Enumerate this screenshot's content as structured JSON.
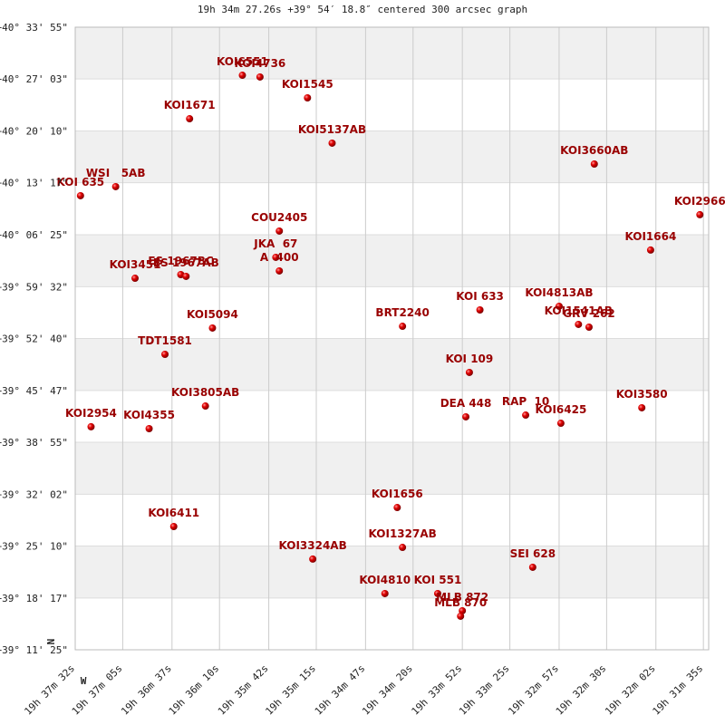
{
  "chart_data": {
    "type": "scatter",
    "title": "19h 34m 27.26s +39° 54′ 18.8″ centered 300 arcsec graph",
    "north_label": "N",
    "west_label": "W",
    "color": "#cc0000",
    "label_color": "#990000",
    "grid": true,
    "band_color": "#f0f0f0",
    "xlim": [
      2252,
      1892
    ],
    "xticks": [
      {
        "value": 2252,
        "label": "19h 37m 32s"
      },
      {
        "value": 2225,
        "label": "19h 37m 05s"
      },
      {
        "value": 2197,
        "label": "19h 36m 37s"
      },
      {
        "value": 2170,
        "label": "19h 36m 10s"
      },
      {
        "value": 2142,
        "label": "19h 35m 42s"
      },
      {
        "value": 2115,
        "label": "19h 35m 15s"
      },
      {
        "value": 2087,
        "label": "19h 34m 47s"
      },
      {
        "value": 2060,
        "label": "19h 34m 20s"
      },
      {
        "value": 2032,
        "label": "19h 33m 52s"
      },
      {
        "value": 2005,
        "label": "19h 33m 25s"
      },
      {
        "value": 1977,
        "label": "19h 32m 57s"
      },
      {
        "value": 1950,
        "label": "19h 32m 30s"
      },
      {
        "value": 1922,
        "label": "19h 32m 02s"
      },
      {
        "value": 1895,
        "label": "19h 31m 35s"
      }
    ],
    "ylim": [
      146035,
      141085
    ],
    "yticks": [
      {
        "value": 146035,
        "label": "+40° 33' 55\""
      },
      {
        "value": 145623,
        "label": "+40° 27' 03\""
      },
      {
        "value": 145210,
        "label": "+40° 20' 10\""
      },
      {
        "value": 144798,
        "label": "+40° 13' 17\""
      },
      {
        "value": 144385,
        "label": "+40° 06' 25\""
      },
      {
        "value": 143972,
        "label": "+39° 59' 32\""
      },
      {
        "value": 143560,
        "label": "+39° 52' 40\""
      },
      {
        "value": 143147,
        "label": "+39° 45' 47\""
      },
      {
        "value": 142735,
        "label": "+39° 38' 55\""
      },
      {
        "value": 142322,
        "label": "+39° 32' 02\""
      },
      {
        "value": 141910,
        "label": "+39° 25' 10\""
      },
      {
        "value": 141497,
        "label": "+39° 18' 17\""
      },
      {
        "value": 141085,
        "label": "+39° 11' 25\""
      }
    ],
    "point_labels": [
      "KOI6551",
      "KOI4736",
      "KOI1545",
      "KOI1671",
      "KOI5137AB",
      "KOI3660AB",
      "WSI   5AB",
      "KOI 635",
      "KOI2966",
      "COU2405",
      "JKA  67",
      "A  400",
      "KOI1664",
      "KOI3451",
      "ES 1967BC",
      "ES 1967AB",
      "KOI 633",
      "KOI4813AB",
      "KOI1541AB",
      "GRV 262",
      "BRT2240",
      "KOI5094",
      "TDT1581",
      "KOI 109",
      "KOI3805AB",
      "DEA 448",
      "RAP  10",
      "KOI6425",
      "KOI3580",
      "KOI2954",
      "KOI4355",
      "KOI1656",
      "KOI6411",
      "KOI1327AB",
      "KOI3324AB",
      "SEI 628",
      "KOI4810",
      "KOI 551",
      "MLB 872",
      "MLB 870"
    ],
    "x": [
      2157,
      2147,
      2120,
      2187,
      2106,
      1957,
      2229,
      2249,
      1897,
      2136,
      2138,
      2136,
      1925,
      2218,
      2192,
      2189,
      2022,
      1977,
      1966,
      1960,
      2066,
      2174,
      2201,
      2028,
      2178,
      2030,
      1996,
      1976,
      1930,
      2243,
      2210,
      2069,
      2196,
      2066,
      2117,
      1992,
      2076,
      2046,
      2032,
      2033
    ],
    "values": [
      145653,
      145639,
      145473,
      145307,
      145113,
      144947,
      144767,
      144695,
      144544,
      144414,
      144205,
      144097,
      144263,
      144039,
      144068,
      144054,
      143787,
      143816,
      143672,
      143650,
      143657,
      143643,
      143434,
      143290,
      143023,
      142937,
      142951,
      142886,
      143009,
      142858,
      142843,
      142216,
      142065,
      141899,
      141806,
      141741,
      141532,
      141532,
      141395,
      141352
    ]
  }
}
